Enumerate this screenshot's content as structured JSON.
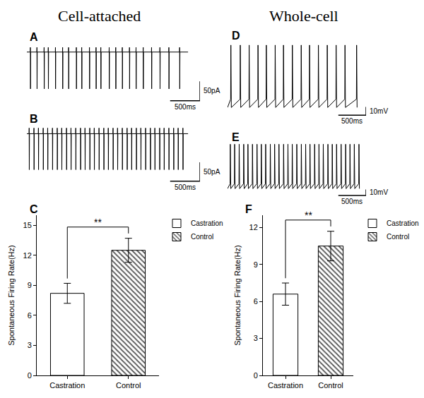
{
  "headings": [
    "Cell-attached",
    "Whole-cell"
  ],
  "chart_data": [
    {
      "panel": "A",
      "type": "line",
      "color": "#000000",
      "tick_labels": false,
      "spike_times": [
        60,
        170,
        290,
        360,
        480,
        600,
        700,
        830,
        920,
        1050,
        1160,
        1240,
        1380,
        1490,
        1600,
        1720,
        1830,
        1950,
        2090,
        2230,
        2380,
        2560
      ],
      "baseline": 0,
      "spike_up": 12,
      "spike_down": -95,
      "duration": 2700,
      "xlim": [
        0,
        2900
      ],
      "ylim": [
        -135,
        25
      ],
      "scale_bars": {
        "x": {
          "value": 500,
          "label": "500ms"
        },
        "y": {
          "value": 50,
          "label": "50pA"
        }
      }
    },
    {
      "panel": "B",
      "type": "line",
      "color": "#000000",
      "tick_labels": false,
      "spike_times": [
        40,
        120,
        195,
        275,
        350,
        430,
        510,
        585,
        665,
        740,
        820,
        900,
        975,
        1055,
        1130,
        1210,
        1290,
        1365,
        1445,
        1520,
        1600,
        1680,
        1755,
        1835,
        1910,
        1990,
        2070,
        2145,
        2225,
        2300,
        2380,
        2460,
        2535,
        2615
      ],
      "baseline": 0,
      "spike_up": 15,
      "spike_down": -95,
      "duration": 2700,
      "xlim": [
        0,
        2900
      ],
      "ylim": [
        -135,
        25
      ],
      "scale_bars": {
        "x": {
          "value": 500,
          "label": "500ms"
        },
        "y": {
          "value": 50,
          "label": "50pA"
        }
      }
    },
    {
      "panel": "C",
      "type": "bar",
      "categories": [
        "Castration",
        "Control"
      ],
      "series": [
        {
          "name": "Castration",
          "color": "#ffffff",
          "values": [
            8.2,
            null
          ],
          "errors": [
            1.0,
            null
          ]
        },
        {
          "name": "Control",
          "color": "#555555",
          "marker": "hatch",
          "values": [
            null,
            12.5
          ],
          "errors": [
            null,
            1.2
          ]
        }
      ],
      "y_label": "Spontaneous Firing Rate(Hz)",
      "ylim": [
        0,
        16
      ],
      "yticks": [
        0,
        3,
        6,
        9,
        12,
        15
      ],
      "grid": false,
      "legend": "right",
      "annotations": [
        {
          "text": "**",
          "between": [
            0,
            1
          ]
        }
      ]
    },
    {
      "panel": "D",
      "type": "line",
      "color": "#000000",
      "tick_labels": false,
      "spike_times": [
        60,
        230,
        390,
        550,
        700,
        860,
        1010,
        1170,
        1330,
        1480,
        1640,
        1800,
        1960,
        2120,
        2330
      ],
      "threshold": -50,
      "peak": 15,
      "trough": -60,
      "xlim": [
        0,
        2500
      ],
      "ylim": [
        -75,
        20
      ],
      "scale_bars": {
        "x": {
          "value": 500,
          "label": "500ms"
        },
        "y": {
          "value": 10,
          "label": "10mV"
        }
      }
    },
    {
      "panel": "E",
      "type": "line",
      "color": "#000000",
      "tick_labels": false,
      "spike_times": [
        50,
        128,
        210,
        292,
        368,
        450,
        532,
        610,
        688,
        772,
        850,
        928,
        1012,
        1090,
        1168,
        1250,
        1332,
        1410,
        1488,
        1572,
        1650,
        1728,
        1812,
        1890,
        1968,
        2050,
        2132,
        2210,
        2288,
        2372
      ],
      "threshold": -50,
      "peak": 15,
      "trough": -58,
      "xlim": [
        0,
        2500
      ],
      "ylim": [
        -75,
        20
      ],
      "scale_bars": {
        "x": {
          "value": 500,
          "label": "500ms"
        },
        "y": {
          "value": 10,
          "label": "10mV"
        }
      }
    },
    {
      "panel": "F",
      "type": "bar",
      "categories": [
        "Castration",
        "Control"
      ],
      "series": [
        {
          "name": "Castration",
          "color": "#ffffff",
          "values": [
            6.6,
            null
          ],
          "errors": [
            0.9,
            null
          ]
        },
        {
          "name": "Control",
          "color": "#555555",
          "marker": "hatch",
          "values": [
            null,
            10.5
          ],
          "errors": [
            null,
            1.2
          ]
        }
      ],
      "y_label": "Spontaneous Firing Rate(Hz)",
      "ylim": [
        0,
        13
      ],
      "yticks": [
        0,
        3,
        6,
        9,
        12
      ],
      "grid": false,
      "legend": "right",
      "annotations": [
        {
          "text": "**",
          "between": [
            0,
            1
          ]
        }
      ]
    }
  ]
}
